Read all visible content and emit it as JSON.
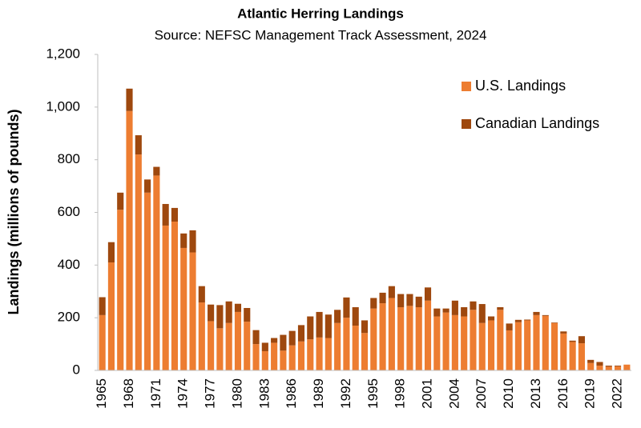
{
  "chart_data": {
    "type": "stacked_bar",
    "title": "Atlantic Herring Landings",
    "subtitle": "Source: NEFSC Management Track Assessment, 2024",
    "y_label": "Landings (millions of pounds)",
    "categories": [
      "1965",
      null,
      null,
      "1968",
      null,
      null,
      "1971",
      null,
      null,
      "1974",
      null,
      null,
      "1977",
      null,
      null,
      "1980",
      null,
      null,
      "1983",
      null,
      null,
      "1986",
      null,
      null,
      "1989",
      null,
      null,
      "1992",
      null,
      null,
      "1995",
      null,
      null,
      "1998",
      null,
      null,
      "2001",
      null,
      null,
      "2004",
      null,
      null,
      "2007",
      null,
      null,
      "2010",
      null,
      null,
      "2013",
      null,
      null,
      "2016",
      null,
      null,
      "2019",
      null,
      null,
      "2022",
      null
    ],
    "series": [
      {
        "name": "U.S. Landings",
        "color": "#ed7d31",
        "values": [
          210,
          410,
          610,
          985,
          820,
          675,
          740,
          550,
          565,
          465,
          448,
          258,
          187,
          160,
          180,
          222,
          185,
          100,
          73,
          105,
          75,
          95,
          110,
          118,
          125,
          123,
          180,
          200,
          170,
          142,
          235,
          255,
          275,
          240,
          245,
          240,
          265,
          205,
          220,
          210,
          205,
          230,
          180,
          190,
          230,
          152,
          183,
          190,
          210,
          207,
          180,
          140,
          108,
          103,
          28,
          18,
          14,
          15,
          22
        ]
      },
      {
        "name": "Canadian Landings",
        "color": "#9e480e",
        "values": [
          68,
          77,
          65,
          85,
          73,
          50,
          33,
          82,
          52,
          55,
          84,
          62,
          63,
          88,
          82,
          31,
          52,
          53,
          32,
          18,
          60,
          55,
          62,
          87,
          97,
          89,
          50,
          77,
          70,
          48,
          40,
          40,
          45,
          50,
          45,
          40,
          50,
          30,
          15,
          55,
          35,
          32,
          72,
          15,
          10,
          26,
          9,
          3,
          12,
          3,
          2,
          8,
          5,
          27,
          12,
          14,
          4,
          3,
          0
        ]
      }
    ],
    "ylim": [
      0,
      1200
    ],
    "yticks": [
      0,
      200,
      400,
      600,
      800,
      {
        "value": 1000,
        "label": "1,000"
      },
      {
        "value": 1200,
        "label": "1,200"
      }
    ],
    "legend": "top-right",
    "grid": false
  }
}
